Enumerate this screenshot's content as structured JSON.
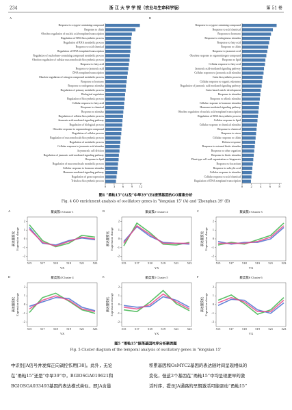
{
  "header": {
    "page": "234",
    "journal": "浙 江 大 学 学 报（农业与生命科学版）",
    "volume": "第 51 卷"
  },
  "chart_data": [
    {
      "type": "barh",
      "label": "A",
      "color": "#4a7bb0",
      "xlim": [
        0,
        12.5
      ],
      "xticks": [
        0,
        3,
        6,
        9,
        12
      ],
      "categories": [
        "Response to oxygen-containing compound",
        "Response to chitin",
        "Obsolete regulation of nucleic acid-templated transcription",
        "Regulation of RNA biosynthetic process",
        "Regulation of RNA metabolic process",
        "Response to acid chemical",
        "Regulation of DNA-templated transcription",
        "Regulation of nucleobase-containing compound metabolic process",
        "Obsolete regulation of cellular macromolecule biosynthetic process",
        "Response to fatty acid",
        "Response to jasmonic acid",
        "DNA-templated transcription",
        "Obsolete regulation of nitrogen compound metabolic process",
        "Response to hormone",
        "Response to endogenous stimulus",
        "Regulation of primary metabolic process",
        "Biological regulation",
        "Regulation of biosynthetic process",
        "Cellular response to fatty acid",
        "Response to chemical",
        "Response to stimulus",
        "Regulation of cellular biosynthetic process",
        "Jasmonic acid-mediated signaling pathway",
        "Regulation of biological process",
        "Obsolete response to organonitrogen compound",
        "Regulation of cellular process",
        "Regulation of macromolecule biosynthetic process",
        "Regulation of metabolic process",
        "Cellular response to jasmonic acid stimulus",
        "Asymmetric cell division",
        "Regulation of jasmonic acid mediated signaling pathway",
        "Response to lipid",
        "Regulation of macromolecule metabolic process",
        "Cellular response to hormone stimulus",
        "Hormone-mediated signaling pathway",
        "Regulation of gene expression",
        "Trehalose biosynthetic process"
      ],
      "values": [
        11.7,
        10.2,
        9.0,
        8.8,
        8.7,
        8.6,
        8.5,
        8.3,
        8.2,
        8.0,
        7.8,
        7.6,
        7.4,
        7.2,
        7.0,
        6.9,
        6.7,
        6.6,
        6.4,
        6.3,
        6.1,
        6.0,
        5.8,
        5.7,
        5.5,
        5.4,
        5.2,
        5.1,
        4.9,
        4.8,
        4.6,
        4.5,
        4.3,
        4.2,
        4.0,
        3.8,
        3.6
      ]
    },
    {
      "type": "barh",
      "label": "B",
      "color": "#4a7bb0",
      "xlim": [
        0,
        8.5
      ],
      "xticks": [
        0,
        2,
        4,
        6,
        8
      ],
      "categories": [
        "Response to oxygen-containing compound",
        "Response to acid chemical",
        "Response to hormone",
        "Response to endogenous stimulus",
        "Response to fatty acid",
        "Response to chitin",
        "Response to jasmonic acid",
        "Obsolete response to organonitrogen compound",
        "Response to lipid",
        "Cellular response to fatty acid",
        "Jasmonic acid-mediated signaling pathway",
        "Cellular response to jasmonic acid stimulus",
        "Cutin biosynthetic process",
        "Cellular response to organic substance",
        "Regulation of jasmonic acid mediated signaling pathway",
        "Cutin-based cuticle development",
        "Response to stimulus",
        "Response to abiotic stimulus",
        "Cellular response to hormone stimulus",
        "Hormone-mediated signaling pathway",
        "Obsolete regulation of nucleic acid-templated transcription",
        "Regulation of RNA biosynthetic process",
        "Cellular response to lipid",
        "Cellular response to chemical stimulus",
        "Response to chemical",
        "Response to stress",
        "Cellular response to chitin",
        "Defense response",
        "Response to external biotic stimulus",
        "Response to other organism",
        "Response to biotic stimulus",
        "Plant-type cell wall organization or biogenesis",
        "Response to bacterium",
        "Response to salicylic acid",
        "Cellular response to stimulus",
        "Cellular response to acid chemical",
        "Regulation of DNA-templated transcription"
      ],
      "values": [
        7.4,
        6.6,
        6.2,
        6.0,
        5.8,
        5.6,
        5.4,
        5.2,
        5.0,
        4.9,
        4.7,
        4.6,
        4.4,
        4.3,
        4.2,
        4.0,
        3.9,
        3.8,
        3.7,
        3.6,
        3.5,
        3.4,
        3.3,
        3.2,
        3.1,
        3.0,
        2.9,
        2.8,
        2.7,
        2.6,
        2.5,
        2.4,
        2.3,
        2.2,
        2.1,
        2.0,
        1.9
      ]
    },
    {
      "type": "line",
      "label": "A",
      "title": "聚类簇1 Cluster 1",
      "ylabel": "表达量变化",
      "ylabel_en": "Expression change",
      "xlabel": "YX",
      "categories": [
        "515",
        "517",
        "518",
        "519",
        "521",
        "523"
      ],
      "ylim": [
        -2.5,
        2.5
      ],
      "yticks": [
        2,
        1,
        0,
        -1,
        -2
      ],
      "series": [
        {
          "color": "#3cb44b",
          "values": [
            1.6,
            -0.2,
            -0.9,
            -0.5,
            0.4,
            0.2
          ]
        },
        {
          "color": "#4a6fd0",
          "values": [
            1.3,
            -0.5,
            -0.7,
            -0.2,
            0.1,
            -0.1
          ]
        },
        {
          "color": "#e8488a",
          "values": [
            1.1,
            -0.4,
            -0.8,
            -0.3,
            0.2,
            0.0
          ]
        }
      ]
    },
    {
      "type": "line",
      "label": "B",
      "title": "聚类簇2 Cluster 2",
      "ylabel": "表达量变化",
      "ylabel_en": "Expression change",
      "xlabel": "YX",
      "categories": [
        "515",
        "517",
        "518",
        "519",
        "521",
        "523"
      ],
      "ylim": [
        -2.5,
        2.5
      ],
      "yticks": [
        2,
        1,
        0,
        -1,
        -2
      ],
      "series": [
        {
          "color": "#3cb44b",
          "values": [
            -0.8,
            1.8,
            0.7,
            -0.6,
            -0.7,
            -0.4
          ]
        },
        {
          "color": "#4a6fd0",
          "values": [
            -0.3,
            1.4,
            0.3,
            -0.4,
            -0.5,
            -0.6
          ]
        },
        {
          "color": "#e8488a",
          "values": [
            -0.5,
            1.5,
            0.5,
            -0.5,
            -0.5,
            -0.5
          ]
        }
      ]
    },
    {
      "type": "line",
      "label": "C",
      "title": "聚类簇3 Cluster 3",
      "ylabel": "表达量变化",
      "ylabel_en": "Expression change",
      "xlabel": "YX",
      "categories": [
        "515",
        "517",
        "518",
        "519",
        "521",
        "523"
      ],
      "ylim": [
        -2.5,
        2.5
      ],
      "yticks": [
        2,
        1,
        0,
        -1,
        -2
      ],
      "series": [
        {
          "color": "#3cb44b",
          "values": [
            -0.7,
            -0.4,
            -0.6,
            -0.1,
            0.4,
            1.8
          ]
        },
        {
          "color": "#4a6fd0",
          "values": [
            -0.3,
            -0.6,
            -0.4,
            -0.4,
            0.0,
            1.3
          ]
        },
        {
          "color": "#e8488a",
          "values": [
            -0.5,
            -0.5,
            -0.5,
            -0.3,
            0.2,
            1.5
          ]
        }
      ]
    },
    {
      "type": "line",
      "label": "D",
      "title": "聚类簇4 Cluster 4",
      "ylabel": "表达量变化",
      "ylabel_en": "Expression change",
      "xlabel": "YX",
      "categories": [
        "515",
        "517",
        "518",
        "519",
        "521",
        "523"
      ],
      "ylim": [
        -2.5,
        2.5
      ],
      "yticks": [
        2,
        1,
        0,
        -1,
        -2
      ],
      "series": [
        {
          "color": "#3cb44b",
          "values": [
            -0.9,
            0.8,
            1.3,
            0.4,
            -0.6,
            -1.0
          ]
        },
        {
          "color": "#4a6fd0",
          "values": [
            -0.2,
            0.3,
            0.8,
            0.7,
            -0.3,
            -0.7
          ]
        },
        {
          "color": "#e8488a",
          "values": [
            -0.5,
            0.5,
            1.0,
            0.5,
            -0.5,
            -0.8
          ]
        }
      ]
    },
    {
      "type": "line",
      "label": "E",
      "title": "聚类簇5 Cluster 5",
      "ylabel": "表达量变化",
      "ylabel_en": "Expression change",
      "xlabel": "YX",
      "categories": [
        "515",
        "517",
        "518",
        "519",
        "521",
        "523"
      ],
      "ylim": [
        -2.5,
        2.5
      ],
      "yticks": [
        2,
        1,
        0,
        -1,
        -2
      ],
      "series": [
        {
          "color": "#3cb44b",
          "values": [
            -0.6,
            -0.8,
            0.3,
            1.6,
            0.1,
            -0.7
          ]
        },
        {
          "color": "#4a6fd0",
          "values": [
            -0.1,
            -0.3,
            -0.2,
            0.9,
            0.5,
            -0.3
          ]
        },
        {
          "color": "#e8488a",
          "values": [
            -0.3,
            -0.5,
            0.0,
            1.2,
            0.3,
            -0.5
          ]
        }
      ]
    },
    {
      "type": "line",
      "label": "F",
      "title": "聚类簇6 Cluster 6",
      "ylabel": "表达量变化",
      "ylabel_en": "Expression change",
      "xlabel": "YX",
      "categories": [
        "515",
        "517",
        "518",
        "519",
        "521",
        "523"
      ],
      "ylim": [
        -2.5,
        2.5
      ],
      "yticks": [
        2,
        1,
        0,
        -1,
        -2
      ],
      "series": [
        {
          "color": "#3cb44b",
          "values": [
            0.5,
            1.1,
            0.1,
            -1.1,
            -0.6,
            0.8
          ]
        },
        {
          "color": "#4a6fd0",
          "values": [
            -0.1,
            0.6,
            0.5,
            -0.6,
            -1.0,
            0.2
          ]
        },
        {
          "color": "#e8488a",
          "values": [
            0.2,
            0.8,
            0.3,
            -0.8,
            -0.8,
            0.5
          ]
        }
      ]
    }
  ],
  "figure4": {
    "caption_cn": "图4 “甬籼15”(A)及“中旱39”(B)振荡基因的GO富集分析",
    "caption_en": "Fig. 4 GO enrichment analysis of oscillatory genes in ‘Yongxian 15’ (A) and ‘Zhonghan 39’ (B)"
  },
  "figure5": {
    "caption_cn": "图5 “甬籼15”振荡基因时序分析聚类图",
    "caption_en": "Fig. 5 Cluster diagram of the temporal analysis of oscillatory genes in ‘Yongxian 15’"
  },
  "body": {
    "left": [
      "中识别JA信号并发挥正向调控作用[38]。此外，无论",
      "在“甬籼15”还是“中旱39”中，BGIOSGA019621和",
      "BGIOSGA033493基因的表达模式类似，即JA含量"
    ],
    "right": [
      "积累基因和OsMYC2基因的表达随时间呈现相似的",
      "变化，但这2个基因在“甬籼15”中均呈现更早的激",
      "活时序，提示JA通路的早期激活可能驱动“甬籼15”"
    ]
  }
}
